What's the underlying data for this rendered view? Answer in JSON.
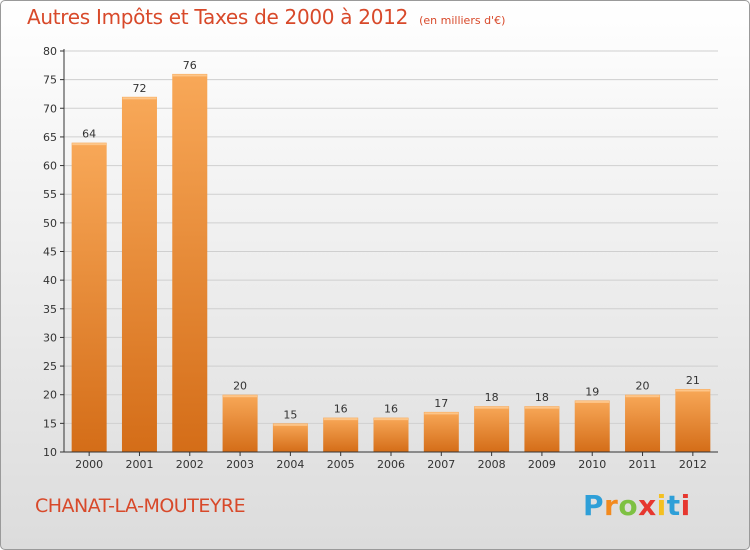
{
  "header": {
    "title": "Autres Impôts et Taxes de 2000 à 2012",
    "unit": "(en milliers d'€)"
  },
  "footer": {
    "commune": "CHANAT-LA-MOUTEYRE",
    "logo": [
      "P",
      "r",
      "o",
      "x",
      "i",
      "t",
      "i"
    ]
  },
  "colors": {
    "title": "#d8492a",
    "bar_light": "#f7a453",
    "bar_dark": "#d8701c",
    "axis": "#333333",
    "grid": "#cfcfcf"
  },
  "chart_data": {
    "type": "bar",
    "title": "Autres Impôts et Taxes de 2000 à 2012",
    "subtitle": "(en milliers d'€)",
    "xlabel": "",
    "ylabel": "",
    "categories": [
      "2000",
      "2001",
      "2002",
      "2003",
      "2004",
      "2005",
      "2006",
      "2007",
      "2008",
      "2009",
      "2010",
      "2011",
      "2012"
    ],
    "values": [
      64,
      72,
      76,
      20,
      15,
      16,
      16,
      17,
      18,
      18,
      19,
      20,
      21
    ],
    "ylim": [
      10,
      80
    ],
    "yticks": [
      10,
      15,
      20,
      25,
      30,
      35,
      40,
      45,
      50,
      55,
      60,
      65,
      70,
      75,
      80
    ],
    "grid": "horizontal",
    "data_labels": true
  }
}
